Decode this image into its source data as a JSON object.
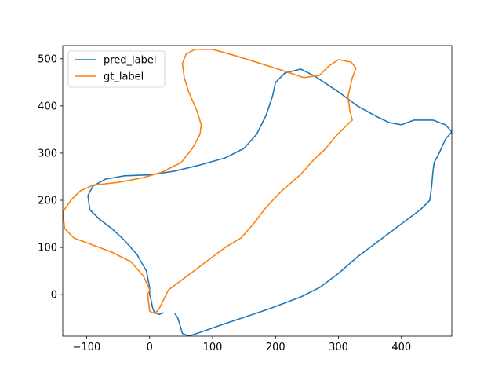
{
  "chart_data": {
    "type": "line",
    "title": "",
    "xlabel": "",
    "ylabel": "",
    "xlim": [
      -138,
      480
    ],
    "ylim": [
      -88,
      528
    ],
    "xticks": [
      -100,
      0,
      100,
      200,
      300,
      400
    ],
    "yticks": [
      0,
      100,
      200,
      300,
      400,
      500
    ],
    "grid": false,
    "legend": "top-left",
    "series": [
      {
        "name": "pred_label",
        "color": "#1f77b4",
        "points": [
          [
            40,
            -40
          ],
          [
            45,
            -50
          ],
          [
            52,
            -82
          ],
          [
            62,
            -88
          ],
          [
            80,
            -80
          ],
          [
            110,
            -66
          ],
          [
            150,
            -48
          ],
          [
            190,
            -30
          ],
          [
            240,
            -5
          ],
          [
            270,
            15
          ],
          [
            300,
            45
          ],
          [
            330,
            80
          ],
          [
            370,
            120
          ],
          [
            400,
            150
          ],
          [
            430,
            180
          ],
          [
            445,
            200
          ],
          [
            448,
            230
          ],
          [
            450,
            260
          ],
          [
            452,
            280
          ],
          [
            460,
            300
          ],
          [
            470,
            330
          ],
          [
            480,
            345
          ],
          [
            470,
            360
          ],
          [
            450,
            370
          ],
          [
            420,
            370
          ],
          [
            400,
            360
          ],
          [
            380,
            365
          ],
          [
            360,
            378
          ],
          [
            330,
            400
          ],
          [
            300,
            430
          ],
          [
            260,
            465
          ],
          [
            240,
            478
          ],
          [
            215,
            470
          ],
          [
            200,
            450
          ],
          [
            195,
            420
          ],
          [
            185,
            380
          ],
          [
            170,
            340
          ],
          [
            150,
            310
          ],
          [
            120,
            290
          ],
          [
            80,
            275
          ],
          [
            40,
            262
          ],
          [
            0,
            254
          ],
          [
            -40,
            252
          ],
          [
            -70,
            245
          ],
          [
            -90,
            230
          ],
          [
            -98,
            210
          ],
          [
            -95,
            180
          ],
          [
            -80,
            160
          ],
          [
            -60,
            140
          ],
          [
            -40,
            115
          ],
          [
            -20,
            85
          ],
          [
            -5,
            50
          ],
          [
            0,
            15
          ],
          [
            0,
            0
          ],
          [
            2,
            -10
          ],
          [
            5,
            -30
          ],
          [
            8,
            -38
          ],
          [
            15,
            -42
          ],
          [
            22,
            -38
          ]
        ]
      },
      {
        "name": "gt_label",
        "color": "#ff7f0e",
        "points": [
          [
            0,
            10
          ],
          [
            -10,
            40
          ],
          [
            -30,
            70
          ],
          [
            -60,
            90
          ],
          [
            -90,
            105
          ],
          [
            -120,
            120
          ],
          [
            -135,
            140
          ],
          [
            -138,
            175
          ],
          [
            -125,
            200
          ],
          [
            -110,
            220
          ],
          [
            -90,
            232
          ],
          [
            -50,
            238
          ],
          [
            -10,
            248
          ],
          [
            20,
            260
          ],
          [
            50,
            280
          ],
          [
            68,
            310
          ],
          [
            80,
            340
          ],
          [
            82,
            360
          ],
          [
            75,
            390
          ],
          [
            62,
            430
          ],
          [
            55,
            460
          ],
          [
            52,
            490
          ],
          [
            58,
            510
          ],
          [
            72,
            520
          ],
          [
            100,
            520
          ],
          [
            140,
            505
          ],
          [
            200,
            480
          ],
          [
            245,
            460
          ],
          [
            270,
            465
          ],
          [
            285,
            485
          ],
          [
            300,
            498
          ],
          [
            320,
            493
          ],
          [
            328,
            480
          ],
          [
            322,
            460
          ],
          [
            315,
            420
          ],
          [
            318,
            390
          ],
          [
            322,
            370
          ],
          [
            310,
            355
          ],
          [
            295,
            335
          ],
          [
            280,
            310
          ],
          [
            260,
            285
          ],
          [
            240,
            255
          ],
          [
            210,
            220
          ],
          [
            185,
            185
          ],
          [
            165,
            150
          ],
          [
            145,
            120
          ],
          [
            120,
            100
          ],
          [
            90,
            70
          ],
          [
            60,
            40
          ],
          [
            30,
            10
          ],
          [
            15,
            -30
          ],
          [
            8,
            -40
          ],
          [
            0,
            -35
          ],
          [
            -3,
            0
          ],
          [
            0,
            10
          ]
        ]
      }
    ]
  }
}
